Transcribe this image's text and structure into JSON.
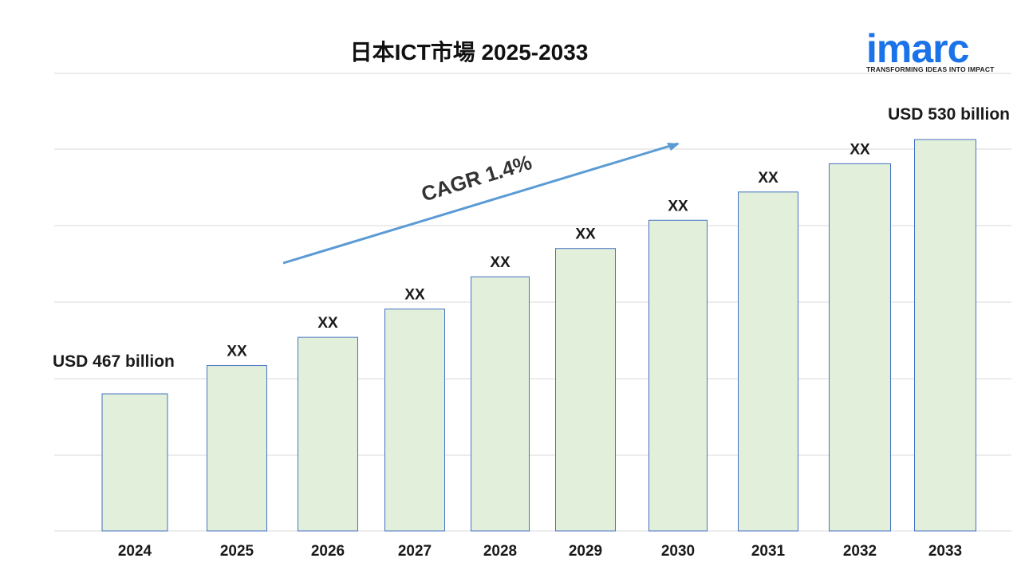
{
  "header": {
    "title": "日本ICT市場 2025-2033"
  },
  "logo": {
    "wordmark": "imarc",
    "tagline": "TRANSFORMING IDEAS INTO IMPACT",
    "brand_color": "#1a73e8"
  },
  "chart_data": {
    "type": "bar",
    "title": "日本ICT市場 2025-2033",
    "xlabel": "",
    "ylabel": "",
    "categories": [
      "2024",
      "2025",
      "2026",
      "2027",
      "2028",
      "2029",
      "2030",
      "2031",
      "2032",
      "2033"
    ],
    "values": [
      467,
      474,
      481,
      488,
      496,
      503,
      510,
      517,
      524,
      530
    ],
    "value_labels": [
      "USD 467 billion",
      "XX",
      "XX",
      "XX",
      "XX",
      "XX",
      "XX",
      "XX",
      "XX",
      "USD 530 billion"
    ],
    "ylim": [
      400,
      540
    ],
    "grid": true,
    "legend": "none",
    "annotation": "CAGR 1.4%",
    "colors": {
      "bar_fill": "#e2efda",
      "bar_stroke": "#4472c4",
      "gridline": "#d9d9d9",
      "arrow": "#5b9bd5",
      "annotation_text": "#333333"
    }
  }
}
